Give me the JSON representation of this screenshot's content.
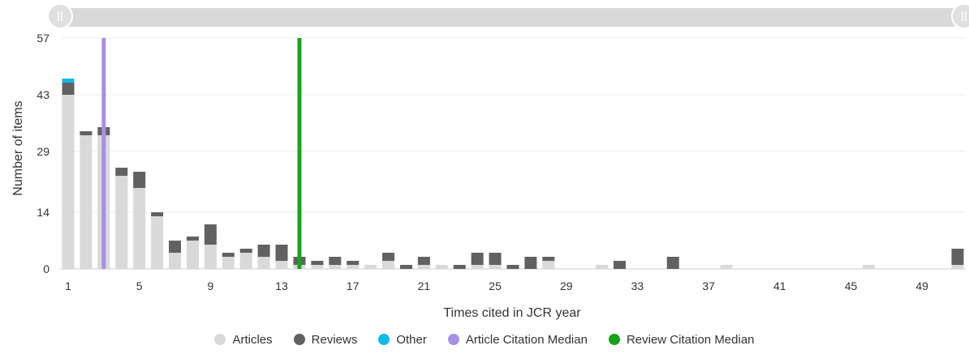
{
  "chart_data": {
    "type": "bar",
    "stacked": true,
    "xlabel": "Times cited in JCR year",
    "ylabel": "Number of items",
    "ylim": [
      0,
      57
    ],
    "yticks": [
      0,
      14,
      29,
      43,
      57
    ],
    "xticks": [
      1,
      5,
      9,
      13,
      17,
      21,
      25,
      29,
      33,
      37,
      41,
      45,
      49
    ],
    "x": [
      1,
      2,
      3,
      4,
      5,
      6,
      7,
      8,
      9,
      10,
      11,
      12,
      13,
      14,
      15,
      16,
      17,
      18,
      19,
      20,
      21,
      22,
      23,
      24,
      25,
      26,
      27,
      28,
      29,
      30,
      31,
      32,
      33,
      34,
      35,
      36,
      37,
      38,
      39,
      40,
      41,
      42,
      43,
      44,
      45,
      46,
      47,
      48,
      49,
      50,
      51
    ],
    "series": [
      {
        "name": "Articles",
        "color": "#d9d9d9",
        "values": [
          43,
          33,
          33,
          23,
          20,
          13,
          4,
          7,
          6,
          3,
          4,
          3,
          2,
          1,
          1,
          1,
          1,
          1,
          2,
          0,
          1,
          1,
          0,
          1,
          1,
          0,
          0,
          2,
          0,
          0,
          1,
          0,
          0,
          0,
          0,
          0,
          0,
          1,
          0,
          0,
          0,
          0,
          0,
          0,
          0,
          1,
          0,
          0,
          0,
          0,
          1
        ]
      },
      {
        "name": "Reviews",
        "color": "#616161",
        "values": [
          3,
          1,
          2,
          2,
          4,
          1,
          3,
          1,
          5,
          1,
          1,
          3,
          4,
          2,
          1,
          2,
          1,
          0,
          2,
          1,
          2,
          0,
          1,
          3,
          3,
          1,
          3,
          1,
          0,
          0,
          0,
          2,
          0,
          0,
          3,
          0,
          0,
          0,
          0,
          0,
          0,
          0,
          0,
          0,
          0,
          0,
          0,
          0,
          0,
          0,
          4
        ]
      },
      {
        "name": "Other",
        "color": "#14b8e6",
        "values": [
          1,
          0,
          0,
          0,
          0,
          0,
          0,
          0,
          0,
          0,
          0,
          0,
          0,
          0,
          0,
          0,
          0,
          0,
          0,
          0,
          0,
          0,
          0,
          0,
          0,
          0,
          0,
          0,
          0,
          0,
          0,
          0,
          0,
          0,
          0,
          0,
          0,
          0,
          0,
          0,
          0,
          0,
          0,
          0,
          0,
          0,
          0,
          0,
          0,
          0,
          0
        ]
      }
    ],
    "medians": [
      {
        "name": "Article Citation Median",
        "color": "#a98fe0",
        "x": 3
      },
      {
        "name": "Review Citation Median",
        "color": "#1aa31a",
        "x": 14
      }
    ]
  },
  "legend": [
    {
      "label": "Articles",
      "color": "#d9d9d9"
    },
    {
      "label": "Reviews",
      "color": "#616161"
    },
    {
      "label": "Other",
      "color": "#14b8e6"
    },
    {
      "label": "Article Citation Median",
      "color": "#a98fe0"
    },
    {
      "label": "Review Citation Median",
      "color": "#1aa31a"
    }
  ]
}
